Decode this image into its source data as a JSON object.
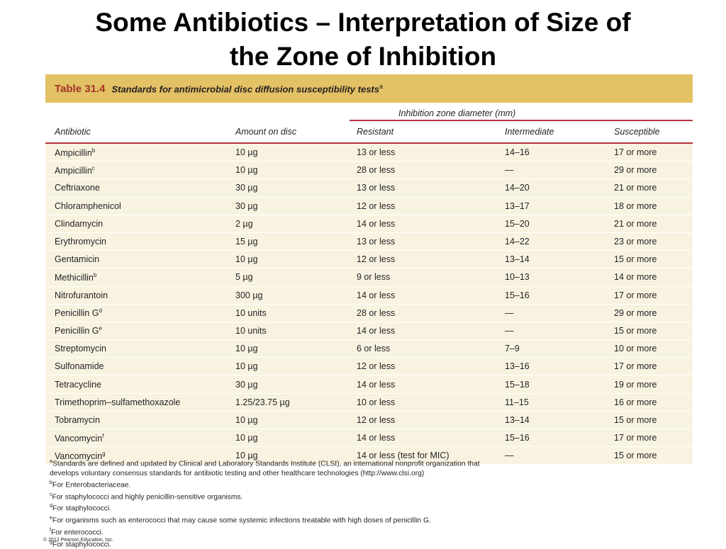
{
  "slide": {
    "title_line1": "Some Antibiotics – Interpretation of Size of",
    "title_line2": "the Zone of Inhibition"
  },
  "table": {
    "number": "Table 31.4",
    "caption": "Standards for antimicrobial disc diffusion susceptibility tests",
    "caption_sup": "a",
    "group_header": "Inhibition zone diameter (mm)",
    "columns": [
      "Antibiotic",
      "Amount on disc",
      "Resistant",
      "Intermediate",
      "Susceptible"
    ],
    "rows": [
      {
        "antibiotic": "Ampicillin",
        "sup": "b",
        "amount": "10 µg",
        "resistant": "13 or less",
        "intermediate": "14–16",
        "susceptible": "17 or more"
      },
      {
        "antibiotic": "Ampicillin",
        "sup": "c",
        "amount": "10 µg",
        "resistant": "28 or less",
        "intermediate": "—",
        "susceptible": "29 or more"
      },
      {
        "antibiotic": "Ceftriaxone",
        "sup": "",
        "amount": "30 µg",
        "resistant": "13 or less",
        "intermediate": "14–20",
        "susceptible": "21 or more"
      },
      {
        "antibiotic": "Chloramphenicol",
        "sup": "",
        "amount": "30 µg",
        "resistant": "12 or less",
        "intermediate": "13–17",
        "susceptible": "18 or more"
      },
      {
        "antibiotic": "Clindamycin",
        "sup": "",
        "amount": "2 µg",
        "resistant": "14 or less",
        "intermediate": "15–20",
        "susceptible": "21 or more"
      },
      {
        "antibiotic": "Erythromycin",
        "sup": "",
        "amount": "15 µg",
        "resistant": "13 or less",
        "intermediate": "14–22",
        "susceptible": "23 or more"
      },
      {
        "antibiotic": "Gentamicin",
        "sup": "",
        "amount": "10 µg",
        "resistant": "12 or less",
        "intermediate": "13–14",
        "susceptible": "15 or more"
      },
      {
        "antibiotic": "Methicillin",
        "sup": "b",
        "amount": "5 µg",
        "resistant": "9 or less",
        "intermediate": "10–13",
        "susceptible": "14 or more"
      },
      {
        "antibiotic": "Nitrofurantoin",
        "sup": "",
        "amount": "300 µg",
        "resistant": "14 or less",
        "intermediate": "15–16",
        "susceptible": "17 or more"
      },
      {
        "antibiotic": "Penicillin G",
        "sup": "d",
        "amount": "10 units",
        "resistant": "28 or less",
        "intermediate": "—",
        "susceptible": "29 or more"
      },
      {
        "antibiotic": "Penicillin G",
        "sup": "e",
        "amount": "10 units",
        "resistant": "14 or less",
        "intermediate": "—",
        "susceptible": "15 or more"
      },
      {
        "antibiotic": "Streptomycin",
        "sup": "",
        "amount": "10 µg",
        "resistant": "6 or less",
        "intermediate": "7–9",
        "susceptible": "10 or more"
      },
      {
        "antibiotic": "Sulfonamide",
        "sup": "",
        "amount": "10 µg",
        "resistant": "12 or less",
        "intermediate": "13–16",
        "susceptible": "17 or more"
      },
      {
        "antibiotic": "Tetracycline",
        "sup": "",
        "amount": "30 µg",
        "resistant": "14 or less",
        "intermediate": "15–18",
        "susceptible": "19 or more"
      },
      {
        "antibiotic": "Trimethoprim–sulfamethoxazole",
        "sup": "",
        "amount": "1.25/23.75 µg",
        "resistant": "10 or less",
        "intermediate": "11–15",
        "susceptible": "16 or more"
      },
      {
        "antibiotic": "Tobramycin",
        "sup": "",
        "amount": "10 µg",
        "resistant": "12 or less",
        "intermediate": "13–14",
        "susceptible": "15 or more"
      },
      {
        "antibiotic": "Vancomycin",
        "sup": "f",
        "amount": "10 µg",
        "resistant": "14 or less",
        "intermediate": "15–16",
        "susceptible": "17 or more"
      },
      {
        "antibiotic": "Vancomycin",
        "sup": "g",
        "amount": "10 µg",
        "resistant": "14 or less (test for MIC)",
        "intermediate": "—",
        "susceptible": "15 or more"
      }
    ]
  },
  "footnotes": [
    {
      "mark": "a",
      "text": "Standards are defined and updated by Clinical and Laboratory Standards Institute (CLSI), an international nonprofit organization that"
    },
    {
      "mark": "",
      "text": "develops voluntary consensus standards for antibiotic testing and other healthcare technologies (http://www.clsi.org)"
    },
    {
      "mark": "b",
      "text": "For Enterobacteriaceae."
    },
    {
      "mark": "c",
      "text": "For staphylococci and highly penicillin-sensitive organisms."
    },
    {
      "mark": "d",
      "text": "For staphylococci."
    },
    {
      "mark": "e",
      "text": "For organisms such as enterococci that may cause some systemic infections treatable with high doses of penicillin G."
    },
    {
      "mark": "f",
      "text": "For enterococci."
    },
    {
      "mark": "g",
      "text": "For staphylococci."
    }
  ],
  "copyright": "© 2012 Pearson Education, Inc.",
  "colors": {
    "header_bar": "#e3c165",
    "table_number": "#a5362b",
    "rule": "#b7323f",
    "row_bg": "#f8f3e1"
  }
}
